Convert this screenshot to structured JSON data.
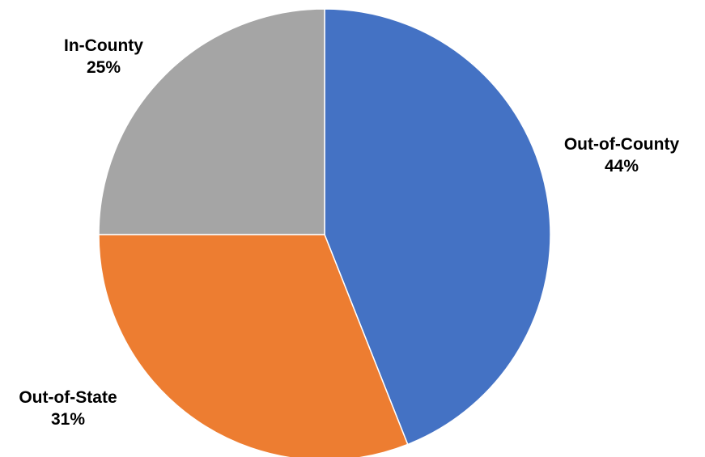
{
  "chart_data": {
    "type": "pie",
    "title": "",
    "start_angle_deg": 0,
    "direction": "clockwise",
    "slices": [
      {
        "label": "Out-of-County",
        "value": 44,
        "value_label": "44%",
        "color": "#4472C4"
      },
      {
        "label": "Out-of-State",
        "value": 31,
        "value_label": "31%",
        "color": "#ED7D31"
      },
      {
        "label": "In-County",
        "value": 25,
        "value_label": "25%",
        "color": "#A5A5A5"
      }
    ],
    "legend": "none",
    "data_labels": "outside, category name and percentage"
  }
}
